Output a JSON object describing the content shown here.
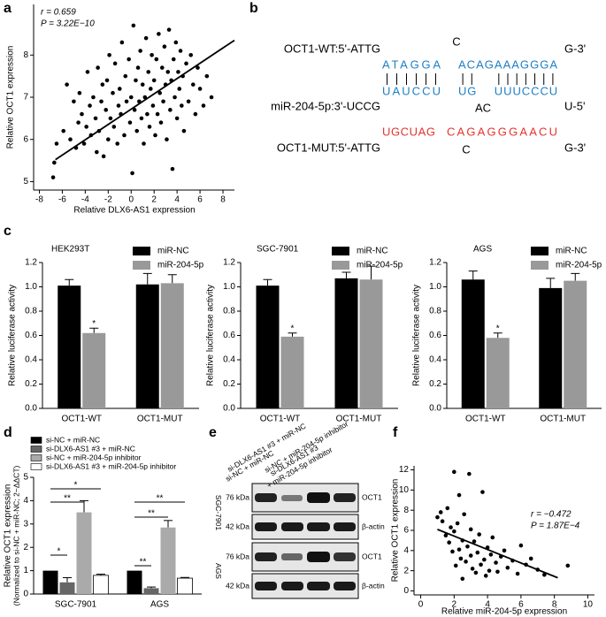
{
  "panel_labels": [
    "a",
    "b",
    "c",
    "d",
    "e",
    "f"
  ],
  "chart_data": [
    {
      "type": "scatter",
      "xlabel": "Relative DLX6-AS1 expression",
      "ylabel": "Relative OCT1 expression",
      "annotations": [
        "r = 0.659",
        "P = 3.22E−10"
      ],
      "color": "#000000",
      "x": [
        -6.8,
        -6.7,
        -6.5,
        -5.9,
        -5.6,
        -5.3,
        -5.0,
        -4.8,
        -4.6,
        -4.5,
        -4.3,
        -4.1,
        -3.9,
        -3.8,
        -3.6,
        -3.5,
        -3.3,
        -3.1,
        -3.0,
        -2.9,
        -2.8,
        -2.6,
        -2.5,
        -2.4,
        -2.2,
        -2.1,
        -2.0,
        -1.9,
        -1.8,
        -1.6,
        -1.5,
        -1.4,
        -1.2,
        -1.1,
        -1.0,
        -0.9,
        -0.8,
        -0.6,
        -0.5,
        -0.4,
        -0.2,
        -0.1,
        0.0,
        0.1,
        0.2,
        0.3,
        0.4,
        0.5,
        0.6,
        0.7,
        0.8,
        0.9,
        1.0,
        1.1,
        1.2,
        1.3,
        1.4,
        1.5,
        1.6,
        1.7,
        1.8,
        1.9,
        2.0,
        2.1,
        2.2,
        2.3,
        2.4,
        2.5,
        2.6,
        2.7,
        2.8,
        2.9,
        3.0,
        3.1,
        3.2,
        3.3,
        3.4,
        3.5,
        3.6,
        3.7,
        3.8,
        3.9,
        4.0,
        4.1,
        4.2,
        4.3,
        4.4,
        4.5,
        4.6,
        4.8,
        5.0,
        5.2,
        5.4,
        5.6,
        5.8,
        6.0,
        6.3,
        6.6,
        7.0
      ],
      "y": [
        5.1,
        5.45,
        5.9,
        6.2,
        7.3,
        6.0,
        6.9,
        5.8,
        6.4,
        7.1,
        6.6,
        5.9,
        6.3,
        7.6,
        6.8,
        6.1,
        7.0,
        6.5,
        5.7,
        7.7,
        6.2,
        6.9,
        7.3,
        5.6,
        6.7,
        7.4,
        6.0,
        8.0,
        6.5,
        7.1,
        6.3,
        7.8,
        5.9,
        6.8,
        7.2,
        6.6,
        8.3,
        6.1,
        7.5,
        6.9,
        7.9,
        6.4,
        7.0,
        5.2,
        8.7,
        6.7,
        7.4,
        6.2,
        7.7,
        6.9,
        8.1,
        6.5,
        7.3,
        5.9,
        7.0,
        8.4,
        6.6,
        7.6,
        6.3,
        7.2,
        8.0,
        6.8,
        7.4,
        6.1,
        7.9,
        6.6,
        8.5,
        7.1,
        6.4,
        7.7,
        6.9,
        8.2,
        7.3,
        6.0,
        7.6,
        8.6,
        6.7,
        7.4,
        5.3,
        7.9,
        7.0,
        8.3,
        6.5,
        7.6,
        7.2,
        8.1,
        6.8,
        7.5,
        6.2,
        7.8,
        6.9,
        8.0,
        7.3,
        6.6,
        7.7,
        7.2,
        6.8,
        7.5,
        7.0
      ],
      "fit_line": {
        "x": [
          -6.6,
          9.0
        ],
        "y": [
          5.52,
          8.35
        ]
      },
      "xlim": [
        -8.5,
        9
      ],
      "ylim": [
        4.8,
        9.2
      ],
      "xticks": [
        -8,
        -6,
        -4,
        -2,
        0,
        2,
        4,
        6,
        8
      ],
      "yticks": [
        5,
        6,
        7,
        8
      ]
    },
    {
      "type": "bar",
      "title": "HEK293T",
      "ylabel": "Relative luciferase activity",
      "categories": [
        "OCT1-WT",
        "OCT1-MUT"
      ],
      "series": [
        {
          "name": "miR-NC",
          "color": "#000000",
          "values": [
            1.01,
            1.02
          ],
          "errors": [
            0.05,
            0.09
          ]
        },
        {
          "name": "miR-204-5p",
          "color": "#999999",
          "values": [
            0.62,
            1.03
          ],
          "errors": [
            0.04,
            0.07
          ]
        }
      ],
      "annotations": [
        "*"
      ],
      "ylim": [
        0,
        1.2
      ],
      "yticks": [
        {
          "value": 0,
          "label": "0.0"
        },
        0.2,
        0.4,
        0.6,
        0.8,
        {
          "value": 1,
          "label": "1.0"
        },
        1.2
      ]
    },
    {
      "type": "bar",
      "title": "SGC-7901",
      "ylabel": "Relative luciferase activity",
      "categories": [
        "OCT1-WT",
        "OCT1-MUT"
      ],
      "series": [
        {
          "name": "miR-NC",
          "color": "#000000",
          "values": [
            1.01,
            1.07
          ],
          "errors": [
            0.05,
            0.05
          ]
        },
        {
          "name": "miR-204-5p",
          "color": "#999999",
          "values": [
            0.59,
            1.06
          ],
          "errors": [
            0.03,
            0.11
          ]
        }
      ],
      "annotations": [
        "*"
      ],
      "ylim": [
        0,
        1.2
      ],
      "yticks": [
        {
          "value": 0,
          "label": "0.0"
        },
        0.2,
        0.4,
        0.6,
        0.8,
        {
          "value": 1,
          "label": "1.0"
        },
        1.2
      ]
    },
    {
      "type": "bar",
      "title": "AGS",
      "ylabel": "Relative luciferase activity",
      "categories": [
        "OCT1-WT",
        "OCT1-MUT"
      ],
      "series": [
        {
          "name": "miR-NC",
          "color": "#000000",
          "values": [
            1.06,
            0.99
          ],
          "errors": [
            0.07,
            0.08
          ]
        },
        {
          "name": "miR-204-5p",
          "color": "#999999",
          "values": [
            0.58,
            1.05
          ],
          "errors": [
            0.04,
            0.06
          ]
        }
      ],
      "annotations": [
        "*"
      ],
      "ylim": [
        0,
        1.2
      ],
      "yticks": [
        {
          "value": 0,
          "label": "0.0"
        },
        0.2,
        0.4,
        0.6,
        0.8,
        {
          "value": 1,
          "label": "1.0"
        },
        1.2
      ]
    },
    {
      "type": "bar",
      "ylabel": [
        "Relative OCT1 expression",
        "(Normalized to si-NC + miR-NC; 2−ΔΔCT)"
      ],
      "categories": [
        "SGC-7901",
        "AGS"
      ],
      "series": [
        {
          "name": "si-NC + miR-NC",
          "color": "#000000",
          "values": [
            1.0,
            1.0
          ],
          "errors": [
            null,
            null
          ]
        },
        {
          "name": "si-DLX6-AS1 #3 + miR-NC",
          "color": "#666666",
          "values": [
            0.5,
            0.25
          ],
          "errors": [
            0.2,
            0.05
          ]
        },
        {
          "name": "si-NC + miR-204-5p inhibitor",
          "color": "#aaaaaa",
          "values": [
            3.5,
            2.85
          ],
          "errors": [
            0.5,
            0.3
          ]
        },
        {
          "name": "si-DLX6-AS1 #3 + miR-204-5p inhibitor",
          "color": "#ffffff",
          "values": [
            0.8,
            0.68
          ],
          "errors": [
            0.05,
            0.03
          ]
        }
      ],
      "annotations": [
        "*",
        "**",
        "*",
        "**",
        "**",
        "**"
      ],
      "ylim": [
        0,
        5
      ],
      "yticks": [
        0,
        1,
        2,
        3,
        4,
        5
      ]
    },
    {
      "type": "scatter",
      "xlabel": "Relative miR-204-5p expression",
      "ylabel": "Relative OCT1 expression",
      "annotations": [
        "r = −0.472",
        "P = 1.87E−4"
      ],
      "color": "#000000",
      "x": [
        1.0,
        1.2,
        1.3,
        1.5,
        1.6,
        1.7,
        1.8,
        1.9,
        2.0,
        2.0,
        2.1,
        2.2,
        2.3,
        2.3,
        2.4,
        2.5,
        2.5,
        2.6,
        2.7,
        2.8,
        2.9,
        3.0,
        3.0,
        3.1,
        3.2,
        3.3,
        3.4,
        3.5,
        3.6,
        3.7,
        3.8,
        3.9,
        4.0,
        4.1,
        4.2,
        4.3,
        4.5,
        4.6,
        4.8,
        5.0,
        5.2,
        5.5,
        5.8,
        6.0,
        6.3,
        6.6,
        7.0,
        7.4,
        8.8
      ],
      "y": [
        7.3,
        7.8,
        6.9,
        5.5,
        8.2,
        4.8,
        6.3,
        3.9,
        5.9,
        11.8,
        2.5,
        6.7,
        4.1,
        9.5,
        3.2,
        5.0,
        1.2,
        7.6,
        2.9,
        4.4,
        11.6,
        3.5,
        6.1,
        2.2,
        4.9,
        1.8,
        3.8,
        5.6,
        2.6,
        9.8,
        3.1,
        1.5,
        4.3,
        2.0,
        3.6,
        5.3,
        2.8,
        1.9,
        3.4,
        4.0,
        2.3,
        3.0,
        1.7,
        4.5,
        2.6,
        3.2,
        2.1,
        1.6,
        2.5
      ],
      "fit_line": {
        "x": [
          1.0,
          8.2
        ],
        "y": [
          6.1,
          1.3
        ]
      },
      "xlim": [
        -0.4,
        10.4
      ],
      "ylim": [
        -0.4,
        12.4
      ],
      "xticks": [
        0,
        2,
        4,
        6,
        8,
        10
      ],
      "yticks": [
        0,
        2,
        4,
        6,
        8,
        10,
        12
      ]
    }
  ],
  "diagram": {
    "wt": {
      "left": "OCT1-WT:5'-ATTG",
      "loop": "C",
      "right": "G-3'",
      "seed1": "ATAGGA",
      "seed2": "ACAGAAAGGGA"
    },
    "mir": {
      "left": "miR-204-5p:3'-UCCG",
      "loop": "AC",
      "right": "U-5'",
      "seed1": "UAUCCU",
      "seed2": "UG",
      "seed3": "UUUCCCU"
    },
    "mut": {
      "left": "OCT1-MUT:5'-ATTG",
      "loop": "C",
      "right": "G-3'",
      "seed1": "UGCUAG",
      "seed2": "CAGAGGGAACU"
    }
  },
  "blot": {
    "lanes": [
      "si-NC + miR-NC",
      "si-DLX6-AS1 #3 + miR-NC",
      "si-NC + miR-204-5p inhibitor",
      [
        "si-DLX6-AS1 #3",
        "+ miR-204-5p inhibitor"
      ]
    ],
    "cell_lines": [
      "SGC-7901",
      "AGS"
    ],
    "markers": [
      "76 kDa",
      "42 kDa"
    ],
    "proteins": [
      "OCT1",
      "β-actin"
    ]
  }
}
